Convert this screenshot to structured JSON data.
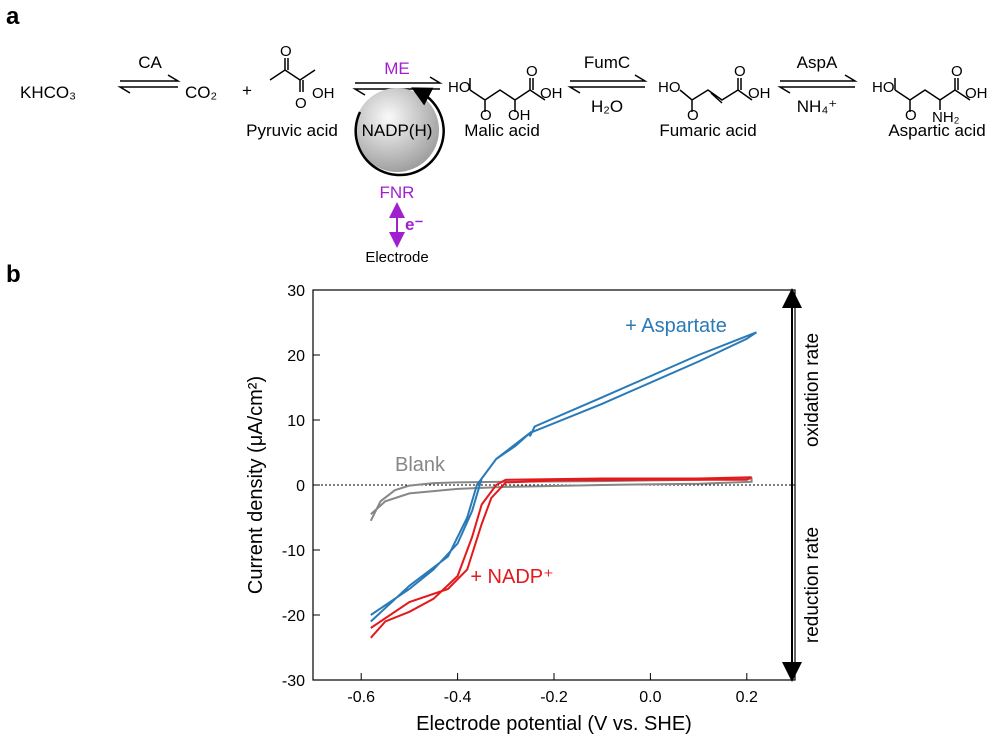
{
  "panel_a": {
    "panel_label": "a",
    "reactants": {
      "khco3": "KHCO₃",
      "co2": "CO₂",
      "plus": "+"
    },
    "enzymes": {
      "ca": "CA",
      "me": "ME",
      "fumc": "FumC",
      "aspa": "AspA",
      "fnr": "FNR"
    },
    "cofactors": {
      "nadph": "NADP(H)",
      "h2o": "H₂O",
      "nh4": "NH₄⁺",
      "electron": "e⁻",
      "electrode": "Electrode"
    },
    "compounds": [
      {
        "label": "Pyruvic acid",
        "atoms": [
          "O",
          "OH",
          "O"
        ]
      },
      {
        "label": "Malic acid",
        "atoms": [
          "HO",
          "O",
          "O",
          "OH",
          "OH"
        ]
      },
      {
        "label": "Fumaric acid",
        "atoms": [
          "HO",
          "O",
          "O",
          "OH"
        ]
      },
      {
        "label": "Aspartic acid",
        "atoms": [
          "HO",
          "O",
          "O",
          "OH",
          "NH₂"
        ]
      }
    ]
  },
  "panel_b_label": "b",
  "chart_data": {
    "type": "line",
    "xlabel": "Electrode potential (V vs. SHE)",
    "ylabel": "Current density (μA/cm²)",
    "xlim": [
      -0.7,
      0.3
    ],
    "ylim": [
      -30,
      30
    ],
    "xticks": [
      -0.6,
      -0.4,
      -0.2,
      {
        "value": 0,
        "label": "0.0"
      },
      0.2
    ],
    "yticks": [
      -30,
      -20,
      -10,
      0,
      10,
      20,
      30
    ],
    "side_labels": [
      "oxidation rate",
      "reduction rate"
    ],
    "series": [
      {
        "name": "Blank",
        "color": "#878787",
        "x": [
          -0.58,
          -0.56,
          -0.53,
          -0.5,
          -0.45,
          -0.4,
          -0.3,
          -0.1,
          0.1,
          0.21,
          0.21,
          0.1,
          -0.1,
          -0.3,
          -0.4,
          -0.5,
          -0.55,
          -0.58
        ],
        "values": [
          -5.5,
          -2.5,
          -0.8,
          -0.1,
          0.3,
          0.4,
          0.5,
          0.6,
          0.8,
          1,
          0.5,
          0.2,
          0,
          -0.3,
          -0.6,
          -1.3,
          -2.5,
          -4.5
        ]
      },
      {
        "name": "+ Aspartate",
        "color": "#2a7ab8",
        "x": [
          -0.58,
          -0.5,
          -0.45,
          -0.4,
          -0.37,
          -0.35,
          -0.32,
          -0.28,
          -0.25,
          -0.25,
          -0.24,
          -0.1,
          0.1,
          0.22,
          0.2,
          0.1,
          -0.1,
          -0.25,
          -0.32,
          -0.36,
          -0.38,
          -0.42,
          -0.5,
          -0.58
        ],
        "values": [
          -20,
          -16,
          -13,
          -9,
          -4,
          1,
          4,
          6,
          8,
          7.5,
          9,
          13.5,
          20,
          23.5,
          22.5,
          19,
          12.5,
          8,
          4,
          0,
          -5,
          -11,
          -15.5,
          -21
        ]
      },
      {
        "name": "+ NADP⁺",
        "color": "#e3191c",
        "x": [
          -0.58,
          -0.55,
          -0.5,
          -0.45,
          -0.4,
          -0.37,
          -0.35,
          -0.32,
          -0.3,
          -0.1,
          0.1,
          0.21,
          0.2,
          0,
          -0.2,
          -0.3,
          -0.33,
          -0.35,
          -0.38,
          -0.42,
          -0.5,
          -0.58
        ],
        "values": [
          -23.5,
          -21,
          -19.5,
          -17.5,
          -14,
          -8,
          -3,
          0,
          0.8,
          1,
          1,
          1.2,
          0.8,
          0.8,
          0.7,
          0.4,
          -2,
          -6,
          -13,
          -16,
          -18,
          -22
        ]
      }
    ]
  }
}
